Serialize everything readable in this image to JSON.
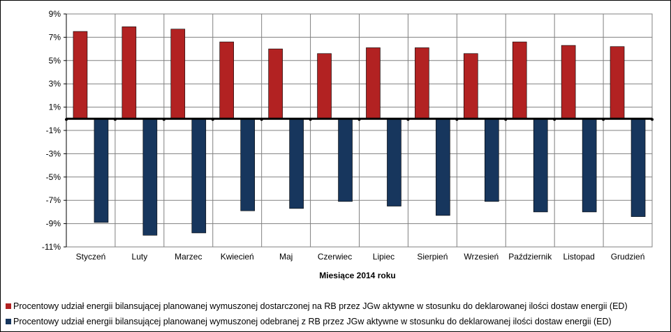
{
  "chart_data": {
    "type": "bar",
    "categories": [
      "Styczeń",
      "Luty",
      "Marzec",
      "Kwiecień",
      "Maj",
      "Czerwiec",
      "Lipiec",
      "Sierpień",
      "Wrzesień",
      "Październik",
      "Listopad",
      "Grudzień"
    ],
    "series": [
      {
        "name": "Procentowy udział energii bilansującej planowanej wymuszonej dostarczonej na RB przez JGw aktywne w stosunku do deklarowanej ilości dostaw energii (ED)",
        "color": "#b22222",
        "values": [
          7.5,
          7.9,
          7.7,
          6.6,
          6.0,
          5.6,
          6.1,
          6.1,
          5.6,
          6.6,
          6.3,
          6.2
        ]
      },
      {
        "name": "Procentowy udział energii bilansującej planowanej wymuszonej odebranej z RB przez JGw aktywne w stosunku do deklarowanej ilości dostaw energii (ED)",
        "color": "#17365d",
        "values": [
          -8.9,
          -10.0,
          -9.8,
          -7.9,
          -7.7,
          -7.1,
          -7.5,
          -8.3,
          -7.1,
          -8.0,
          -8.0,
          -8.4
        ]
      }
    ],
    "xlabel": "Miesiące 2014 roku",
    "ylabel": "",
    "ylim": [
      -11,
      9
    ],
    "yticks": [
      "9%",
      "7%",
      "5%",
      "3%",
      "1%",
      "-1%",
      "-3%",
      "-5%",
      "-7%",
      "-9%",
      "-11%"
    ],
    "grid": true,
    "legend_position": "bottom"
  }
}
